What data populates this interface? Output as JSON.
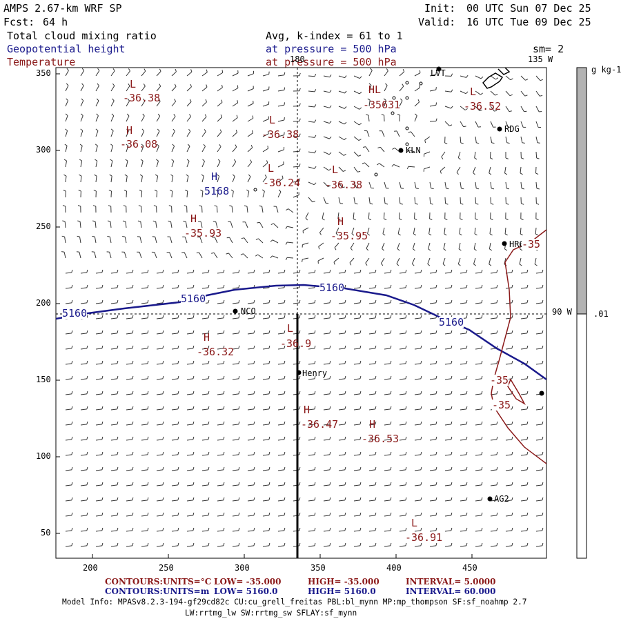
{
  "header": {
    "model": "AMPS 2.67-km WRF SP",
    "forecast_label": "Fcst:",
    "forecast_hours": "64 h",
    "init_label": "Init:",
    "init_time": "00 UTC Sun 07 Dec 25",
    "valid_label": "Valid:",
    "valid_time": "16 UTC Tue 09 Dec 25",
    "field1": "Total cloud mixing ratio",
    "field2": "Geopotential height",
    "field3": "Temperature",
    "avg_line": "Avg, k-index =  61 to   1",
    "pressure1": "at pressure =  500 hPa",
    "pressure2": "at pressure =  500 hPa",
    "smoothing": "sm= 2"
  },
  "map": {
    "meridian_180": "180",
    "meridian_135w": "135 W",
    "meridian_90w": "90 W",
    "x_ticks": [
      "200",
      "250",
      "300",
      "350",
      "400",
      "450"
    ],
    "y_ticks": [
      "350",
      "300",
      "250",
      "200",
      "150",
      "100",
      "50"
    ],
    "stations": [
      "LVT",
      "RDG",
      "KLN",
      "HRG",
      "NCO",
      "Henry",
      "AG2"
    ],
    "height_contour_label": "5160",
    "temp_contour_label": "-35",
    "extrema": [
      {
        "kind": "L",
        "value": "-36.38",
        "color": "red"
      },
      {
        "kind": "H",
        "value": "-36.08",
        "color": "red"
      },
      {
        "kind": "L",
        "value": "-36.38",
        "color": "red"
      },
      {
        "kind": "L",
        "value": "-36.24",
        "color": "red"
      },
      {
        "kind": "L",
        "value": "-36.38",
        "color": "red"
      },
      {
        "kind": "H",
        "value": "-35.93",
        "color": "red"
      },
      {
        "kind": "H",
        "value": "-35.95",
        "color": "red"
      },
      {
        "kind": "HL",
        "value": "-35631",
        "color": "red"
      },
      {
        "kind": "L",
        "value": "-36.52",
        "color": "red"
      },
      {
        "kind": "H",
        "value": "5168",
        "color": "blue"
      },
      {
        "kind": "H",
        "value": "-36.32",
        "color": "red"
      },
      {
        "kind": "L",
        "value": "-36.9",
        "color": "red"
      },
      {
        "kind": "H",
        "value": "-36.47",
        "color": "red"
      },
      {
        "kind": "H",
        "value": "-36.53",
        "color": "red"
      },
      {
        "kind": "L",
        "value": "-36.91",
        "color": "red"
      }
    ]
  },
  "colorbar": {
    "unit": "g kg-1",
    "label": ".01"
  },
  "footer": {
    "line1_contours": "CONTOURS:",
    "line1_units": "UNITS=°C",
    "line1_low": "LOW= -35.000",
    "line1_high": "HIGH= -35.000",
    "line1_interval": "INTERVAL=   5.0000",
    "line2_contours": "CONTOURS:",
    "line2_units": "UNITS=m",
    "line2_low": "LOW=  5160.0",
    "line2_high": "HIGH=  5160.0",
    "line2_interval": "INTERVAL=   60.000",
    "model_info": "Model Info: MPASv8.2.3-194-gf29cd82c CU:cu_grell_freitas PBL:bl_mynn MP:mp_thompson SF:sf_noahmp 2.7",
    "model_info2": "LW:rrtmg_lw SW:rrtmg_sw SFLAY:sf_mynn"
  },
  "colors": {
    "height": "#1a1a8c",
    "temperature": "#8b1a1a",
    "colorbar_fill": "#b3b3b3"
  }
}
